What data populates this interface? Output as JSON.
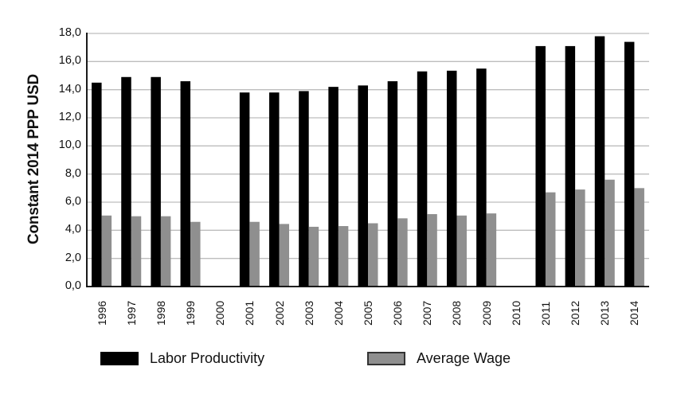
{
  "chart_data": {
    "type": "bar",
    "title": "",
    "xlabel": "",
    "ylabel": "Constant 2014 PPP USD",
    "ylim": [
      0,
      18
    ],
    "yticks": [
      "0,0",
      "2,0",
      "4,0",
      "6,0",
      "8,0",
      "10,0",
      "12,0",
      "14,0",
      "16,0",
      "18,0"
    ],
    "grid": true,
    "legend_position": "bottom",
    "categories": [
      "1996",
      "1997",
      "1998",
      "1999",
      "2000",
      "2001",
      "2002",
      "2003",
      "2004",
      "2005",
      "2006",
      "2007",
      "2008",
      "2009",
      "2010",
      "2011",
      "2012",
      "2013",
      "2014"
    ],
    "series": [
      {
        "name": "Labor Productivity",
        "color": "#000000",
        "values": [
          14.5,
          14.9,
          14.9,
          14.6,
          null,
          13.8,
          13.8,
          13.9,
          14.2,
          14.3,
          14.6,
          15.3,
          15.35,
          15.5,
          null,
          17.1,
          17.1,
          17.8,
          17.4
        ]
      },
      {
        "name": "Average Wage",
        "color": "#8f8f8f",
        "values": [
          5.05,
          5.0,
          5.0,
          4.6,
          null,
          4.6,
          4.45,
          4.25,
          4.3,
          4.5,
          4.85,
          5.15,
          5.05,
          5.2,
          null,
          6.7,
          6.9,
          7.6,
          7.0
        ]
      }
    ]
  },
  "colors": {
    "gridline": "#bdbdbd",
    "axis": "#000000",
    "wage_border": "#333333"
  },
  "legend": {
    "items": [
      {
        "label": "Labor Productivity",
        "color": "#000000"
      },
      {
        "label": "Average Wage",
        "color": "#8f8f8f"
      }
    ]
  }
}
